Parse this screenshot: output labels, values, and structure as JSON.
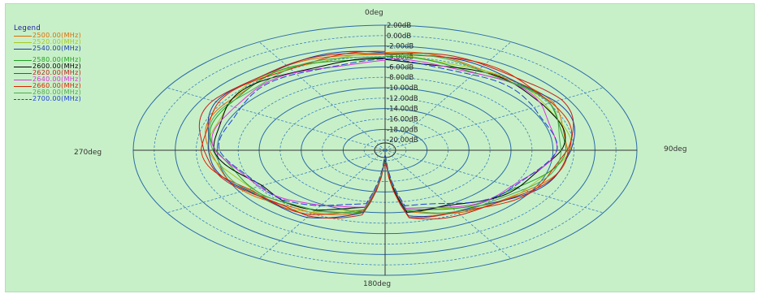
{
  "chart_data": {
    "type": "polar",
    "angle_labels": {
      "top": "0deg",
      "right": "90deg",
      "bottom": "180deg",
      "left": "270deg"
    },
    "radial_tick_labels": [
      "2.00dB",
      "0.00dB",
      "-2.00dB",
      "-4.00dB",
      "-6.00dB",
      "-8.00dB",
      "-10.00dB",
      "-12.00dB",
      "-14.00dB",
      "-16.00dB",
      "-18.00dB",
      "-20.00dB"
    ],
    "radial_range_db": [
      -22,
      2
    ],
    "grid": true,
    "legend": {
      "title": "Legend",
      "placement": "top-left",
      "entries": [
        {
          "label": "2500.00(MHz)",
          "color": "#e06a00",
          "dashed": false
        },
        {
          "label": "2520.00(MHz)",
          "color": "#a8c820",
          "dashed": false
        },
        {
          "label": "2540.00(MHz)",
          "color": "#1a3aa8",
          "dashed": false
        },
        {
          "label": "2580.00(MHz)",
          "color": "#20a020",
          "dashed": false
        },
        {
          "label": "2600.00(MHz)",
          "color": "#000000",
          "dashed": false
        },
        {
          "label": "2620.00(MHz)",
          "color": "#c02020",
          "dashed": false
        },
        {
          "label": "2640.00(MHz)",
          "color": "#e030e0",
          "dashed": false
        },
        {
          "label": "2660.00(MHz)",
          "color": "#e02000",
          "dashed": false
        },
        {
          "label": "2680.00(MHz)",
          "color": "#50a850",
          "dashed": false
        },
        {
          "label": "2700.00(MHz)",
          "color": "#1a40d8",
          "dashed": true
        }
      ]
    },
    "base_pattern_db": {
      "angles_deg": [
        0,
        30,
        60,
        90,
        120,
        150,
        170,
        178,
        182,
        190,
        210,
        240,
        270,
        300,
        330,
        350
      ],
      "values_db": [
        -3.5,
        -3.7,
        -3.6,
        -4.5,
        -6.5,
        -8.5,
        -9.5,
        -19.5,
        -19.5,
        -10.0,
        -8.0,
        -7.0,
        -5.0,
        -4.0,
        -3.6,
        -3.5
      ]
    },
    "series": [
      {
        "label": "2500.00(MHz)",
        "offset_db": 0.0
      },
      {
        "label": "2520.00(MHz)",
        "offset_db": -0.3
      },
      {
        "label": "2540.00(MHz)",
        "offset_db": 0.3
      },
      {
        "label": "2580.00(MHz)",
        "offset_db": -0.6
      },
      {
        "label": "2600.00(MHz)",
        "offset_db": -0.9
      },
      {
        "label": "2620.00(MHz)",
        "offset_db": 0.5
      },
      {
        "label": "2640.00(MHz)",
        "offset_db": -1.2
      },
      {
        "label": "2660.00(MHz)",
        "offset_db": 0.2
      },
      {
        "label": "2680.00(MHz)",
        "offset_db": -0.4
      },
      {
        "label": "2700.00(MHz)",
        "offset_db": -1.5
      }
    ]
  }
}
